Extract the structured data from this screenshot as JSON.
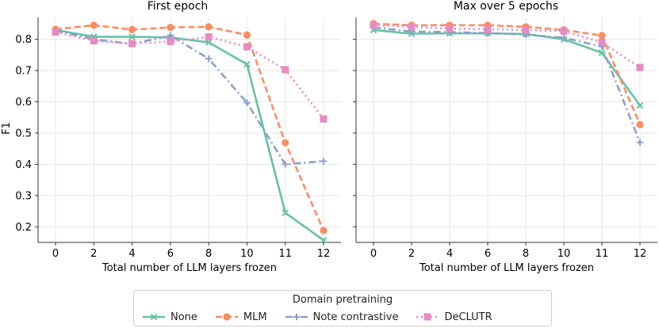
{
  "chart_data": [
    {
      "type": "line",
      "title": "First epoch",
      "ylabel": "F1",
      "xlabel": "Total number of LLM layers frozen",
      "x_tick_labels": [
        "0",
        "2",
        "4",
        "6",
        "8",
        "10",
        "11",
        "12"
      ],
      "ylim": [
        0.15,
        0.87
      ],
      "y_ticks": [
        0.2,
        0.3,
        0.4,
        0.5,
        0.6,
        0.7,
        0.8
      ],
      "grid": true,
      "series": [
        {
          "name": "None",
          "values": [
            0.83,
            0.808,
            0.808,
            0.806,
            0.79,
            0.72,
            0.245,
            0.157
          ]
        },
        {
          "name": "MLM",
          "values": [
            0.832,
            0.845,
            0.831,
            0.838,
            0.84,
            0.814,
            0.469,
            0.188
          ]
        },
        {
          "name": "Note contrastive",
          "values": [
            0.828,
            0.8,
            0.785,
            0.812,
            0.738,
            0.597,
            0.4,
            0.41
          ]
        },
        {
          "name": "DeCLUTR",
          "values": [
            0.823,
            0.795,
            0.786,
            0.793,
            0.808,
            0.776,
            0.703,
            0.545
          ]
        }
      ]
    },
    {
      "type": "line",
      "title": "Max over 5 epochs",
      "xlabel": "Total number of LLM layers frozen",
      "x_tick_labels": [
        "0",
        "2",
        "4",
        "6",
        "8",
        "10",
        "11",
        "12"
      ],
      "ylim": [
        0.15,
        0.87
      ],
      "grid": true,
      "series": [
        {
          "name": "None",
          "values": [
            0.83,
            0.818,
            0.819,
            0.819,
            0.817,
            0.8,
            0.757,
            0.588
          ]
        },
        {
          "name": "MLM",
          "values": [
            0.85,
            0.845,
            0.845,
            0.845,
            0.84,
            0.83,
            0.812,
            0.527
          ]
        },
        {
          "name": "Note contrastive",
          "values": [
            0.838,
            0.825,
            0.823,
            0.82,
            0.815,
            0.805,
            0.777,
            0.47
          ]
        },
        {
          "name": "DeCLUTR",
          "values": [
            0.845,
            0.84,
            0.834,
            0.832,
            0.83,
            0.826,
            0.79,
            0.71
          ]
        }
      ]
    }
  ],
  "legend": {
    "title": "Domain pretraining",
    "items": [
      {
        "label": "None",
        "color": "#66c2a5",
        "marker": "x",
        "dash": "solid"
      },
      {
        "label": "MLM",
        "color": "#fc8d62",
        "marker": "circle",
        "dash": "dashed"
      },
      {
        "label": "Note contrastive",
        "color": "#8da0cb",
        "marker": "plus",
        "dash": "dashdot"
      },
      {
        "label": "DeCLUTR",
        "color": "#e78ac3",
        "marker": "square",
        "dash": "dotted"
      }
    ]
  }
}
